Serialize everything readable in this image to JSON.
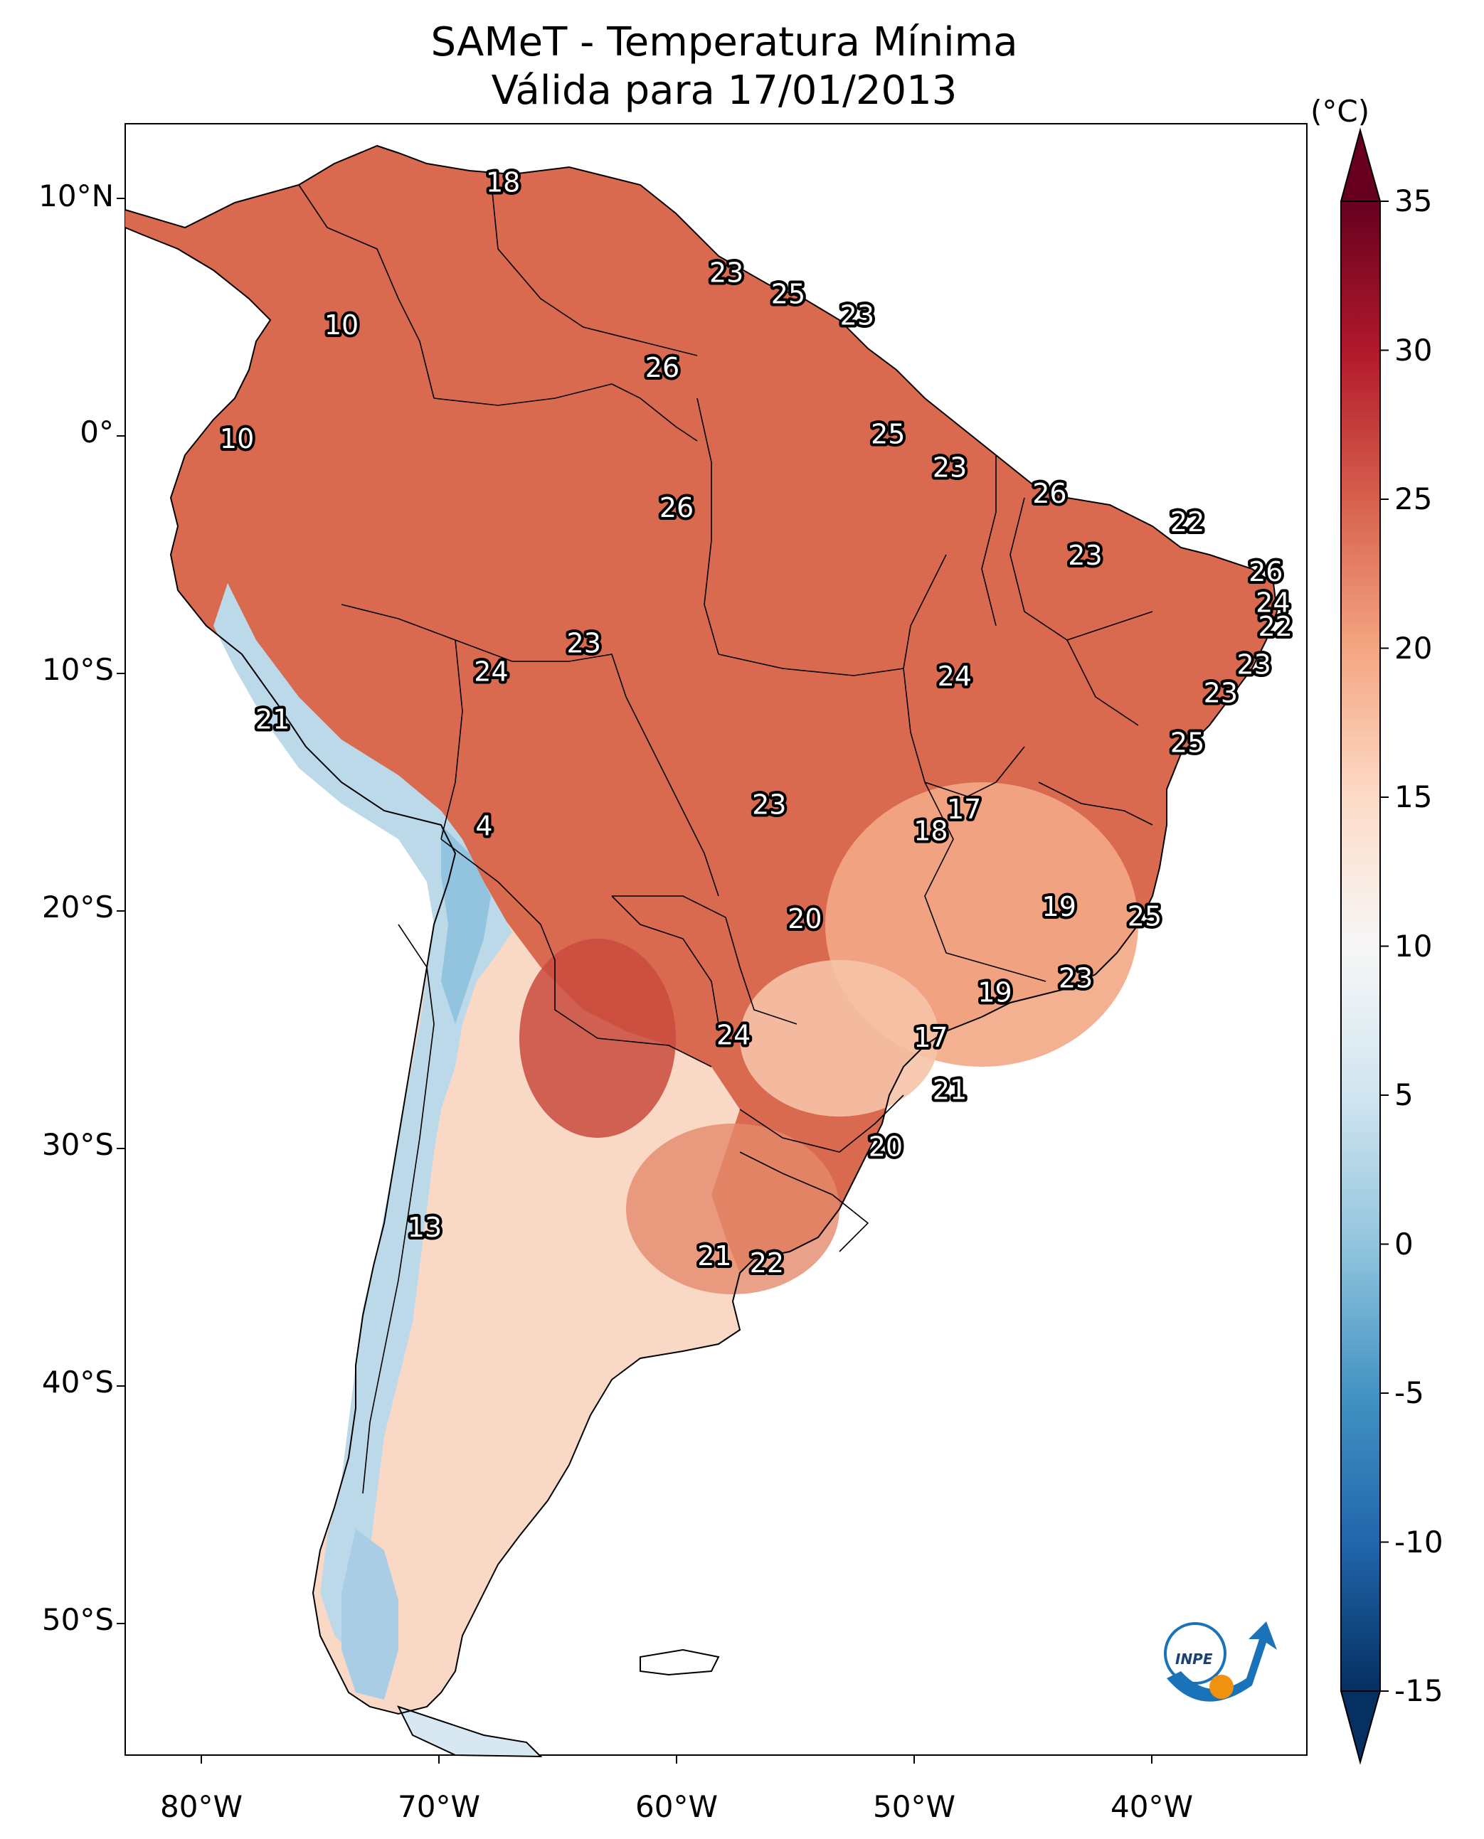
{
  "title": {
    "line1": "SAMeT - Temperatura Mínima",
    "line2": "Válida para 17/01/2013"
  },
  "colorbar": {
    "unit": "(°C)",
    "ticks": [
      "35",
      "30",
      "25",
      "20",
      "15",
      "10",
      "5",
      "0",
      "-5",
      "-10",
      "-15"
    ],
    "range": [
      -15,
      35
    ],
    "colormap": "RdBu_r",
    "colors": [
      "#053061",
      "#2166ac",
      "#4393c3",
      "#92c5de",
      "#d1e5f0",
      "#f7f7f7",
      "#fddbc7",
      "#f4a582",
      "#d6604d",
      "#b2182b",
      "#67001f"
    ]
  },
  "axes": {
    "lat_labels": [
      "10°N",
      "0°",
      "10°S",
      "20°S",
      "30°S",
      "40°S",
      "50°S"
    ],
    "lon_labels": [
      "80°W",
      "70°W",
      "60°W",
      "50°W",
      "40°W"
    ]
  },
  "station_labels": [
    {
      "text": "18",
      "lon": -67.3,
      "lat": 10.6
    },
    {
      "text": "23",
      "lon": -57.9,
      "lat": 6.8
    },
    {
      "text": "25",
      "lon": -55.3,
      "lat": 5.9
    },
    {
      "text": "23",
      "lon": -52.4,
      "lat": 5.0
    },
    {
      "text": "10",
      "lon": -74.1,
      "lat": 4.6
    },
    {
      "text": "26",
      "lon": -60.6,
      "lat": 2.8
    },
    {
      "text": "10",
      "lon": -78.5,
      "lat": -0.2
    },
    {
      "text": "25",
      "lon": -51.1,
      "lat": 0.0
    },
    {
      "text": "23",
      "lon": -48.5,
      "lat": -1.4
    },
    {
      "text": "26",
      "lon": -60.0,
      "lat": -3.1
    },
    {
      "text": "26",
      "lon": -44.3,
      "lat": -2.5
    },
    {
      "text": "22",
      "lon": -38.5,
      "lat": -3.7
    },
    {
      "text": "23",
      "lon": -42.8,
      "lat": -5.1
    },
    {
      "text": "26",
      "lon": -35.2,
      "lat": -5.8
    },
    {
      "text": "24",
      "lon": -34.9,
      "lat": -7.1
    },
    {
      "text": "22",
      "lon": -34.8,
      "lat": -8.1
    },
    {
      "text": "23",
      "lon": -63.9,
      "lat": -8.8
    },
    {
      "text": "23",
      "lon": -35.7,
      "lat": -9.7
    },
    {
      "text": "24",
      "lon": -67.8,
      "lat": -10.0
    },
    {
      "text": "24",
      "lon": -48.3,
      "lat": -10.2
    },
    {
      "text": "23",
      "lon": -37.1,
      "lat": -10.9
    },
    {
      "text": "21",
      "lon": -77.0,
      "lat": -12.0
    },
    {
      "text": "25",
      "lon": -38.5,
      "lat": -13.0
    },
    {
      "text": "23",
      "lon": -56.1,
      "lat": -15.6
    },
    {
      "text": "17",
      "lon": -47.9,
      "lat": -15.8
    },
    {
      "text": "4",
      "lon": -68.1,
      "lat": -16.5
    },
    {
      "text": "18",
      "lon": -49.3,
      "lat": -16.7
    },
    {
      "text": "19",
      "lon": -43.9,
      "lat": -19.9
    },
    {
      "text": "20",
      "lon": -54.6,
      "lat": -20.4
    },
    {
      "text": "25",
      "lon": -40.3,
      "lat": -20.3
    },
    {
      "text": "23",
      "lon": -43.2,
      "lat": -22.9
    },
    {
      "text": "19",
      "lon": -46.6,
      "lat": -23.5
    },
    {
      "text": "24",
      "lon": -57.6,
      "lat": -25.3
    },
    {
      "text": "17",
      "lon": -49.3,
      "lat": -25.4
    },
    {
      "text": "21",
      "lon": -48.5,
      "lat": -27.6
    },
    {
      "text": "20",
      "lon": -51.2,
      "lat": -30.0
    },
    {
      "text": "13",
      "lon": -70.6,
      "lat": -33.4
    },
    {
      "text": "21",
      "lon": -58.4,
      "lat": -34.6
    },
    {
      "text": "22",
      "lon": -56.2,
      "lat": -34.9
    }
  ],
  "logo": {
    "text": "INPE"
  }
}
